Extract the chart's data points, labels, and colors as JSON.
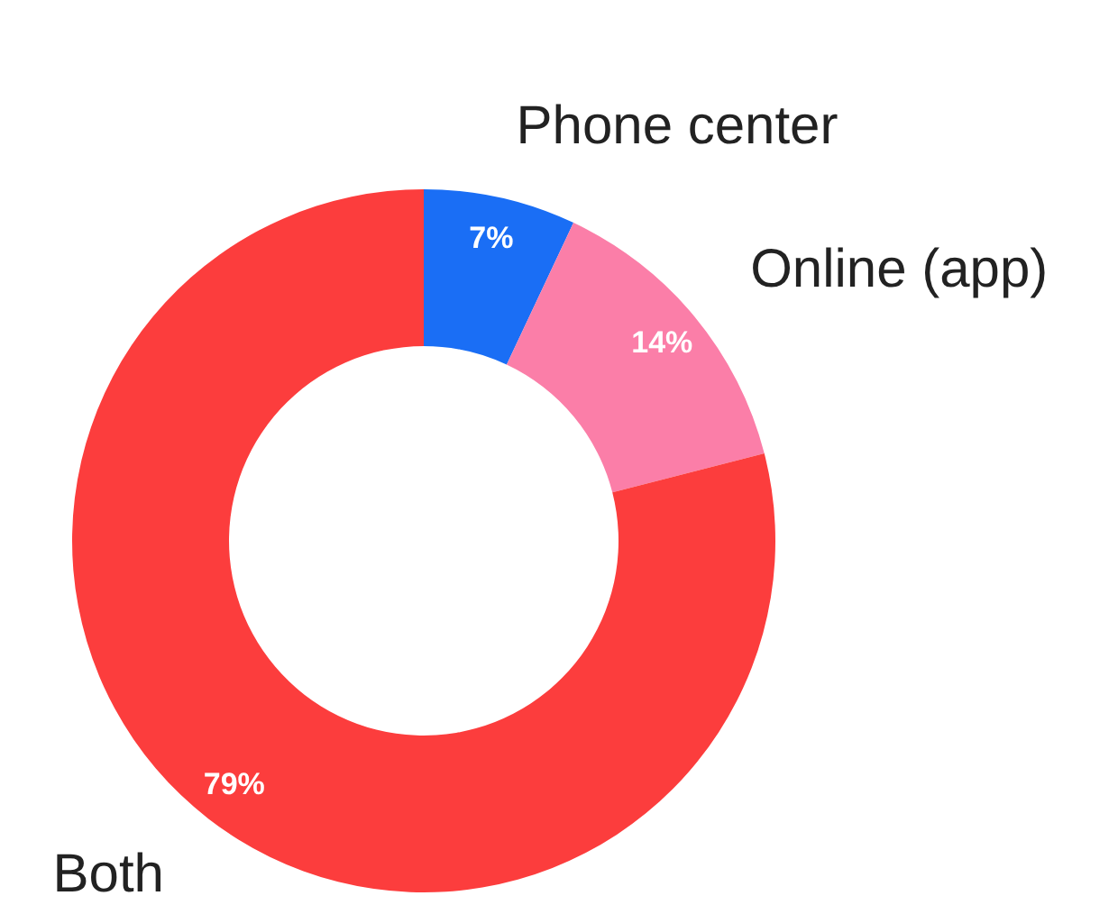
{
  "chart_data": {
    "type": "donut",
    "categories": [
      "Phone center",
      "Online (app)",
      "Both"
    ],
    "values": [
      7,
      14,
      79
    ],
    "colors": [
      "#1a6ef5",
      "#fb7ea8",
      "#fc3d3d"
    ],
    "value_labels": [
      "7%",
      "14%",
      "79%"
    ]
  }
}
